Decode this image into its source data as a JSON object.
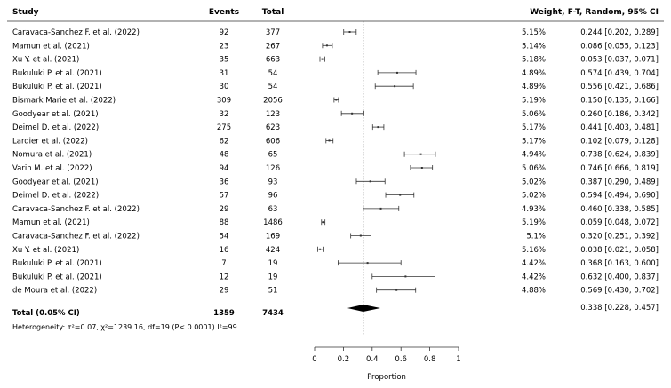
{
  "headers": {
    "study": "Study",
    "events": "Events",
    "total": "Total",
    "weight_ci": "Weight, F-T, Random, 95% CI"
  },
  "chart_data": {
    "type": "forest",
    "xlabel": "Proportion",
    "xlim": [
      0,
      1
    ],
    "xticks": [
      0,
      0.2,
      0.4,
      0.6,
      0.8,
      1
    ],
    "xtick_labels": [
      "0",
      "0.2",
      "0.4",
      "0.6",
      "0.8",
      "1"
    ],
    "reference_line": 0.338,
    "rows": [
      {
        "study": "Caravaca-Sanchez F. et al. (2022)",
        "events": "92",
        "total": "377",
        "weight": "5.15%",
        "est": 0.244,
        "lo": 0.202,
        "hi": 0.289,
        "ci": "0.244 [0.202, 0.289]"
      },
      {
        "study": "Mamun et al. (2021)",
        "events": "23",
        "total": "267",
        "weight": "5.14%",
        "est": 0.086,
        "lo": 0.055,
        "hi": 0.123,
        "ci": "0.086 [0.055, 0.123]"
      },
      {
        "study": "Xu Y. et al. (2021)",
        "events": "35",
        "total": "663",
        "weight": "5.18%",
        "est": 0.053,
        "lo": 0.037,
        "hi": 0.071,
        "ci": "0.053 [0.037, 0.071]"
      },
      {
        "study": "Bukuluki P. et al. (2021)",
        "events": "31",
        "total": "54",
        "weight": "4.89%",
        "est": 0.574,
        "lo": 0.439,
        "hi": 0.704,
        "ci": "0.574 [0.439, 0.704]"
      },
      {
        "study": "Bukuluki P. et al. (2021)",
        "events": "30",
        "total": "54",
        "weight": "4.89%",
        "est": 0.556,
        "lo": 0.421,
        "hi": 0.686,
        "ci": "0.556 [0.421, 0.686]"
      },
      {
        "study": "Bismark Marie et al. (2022)",
        "events": "309",
        "total": "2056",
        "weight": "5.19%",
        "est": 0.15,
        "lo": 0.135,
        "hi": 0.166,
        "ci": "0.150 [0.135, 0.166]"
      },
      {
        "study": "Goodyear et al. (2021)",
        "events": "32",
        "total": "123",
        "weight": "5.06%",
        "est": 0.26,
        "lo": 0.186,
        "hi": 0.342,
        "ci": "0.260 [0.186, 0.342]"
      },
      {
        "study": "Deimel D. et al. (2022)",
        "events": "275",
        "total": "623",
        "weight": "5.17%",
        "est": 0.441,
        "lo": 0.403,
        "hi": 0.481,
        "ci": "0.441 [0.403, 0.481]"
      },
      {
        "study": "Lardier et al. (2022)",
        "events": "62",
        "total": "606",
        "weight": "5.17%",
        "est": 0.102,
        "lo": 0.079,
        "hi": 0.128,
        "ci": "0.102 [0.079, 0.128]"
      },
      {
        "study": "Nomura et al. (2021)",
        "events": "48",
        "total": "65",
        "weight": "4.94%",
        "est": 0.738,
        "lo": 0.624,
        "hi": 0.839,
        "ci": "0.738 [0.624, 0.839]"
      },
      {
        "study": "Varin M. et al. (2022)",
        "events": "94",
        "total": "126",
        "weight": "5.06%",
        "est": 0.746,
        "lo": 0.666,
        "hi": 0.819,
        "ci": "0.746 [0.666, 0.819]"
      },
      {
        "study": "Goodyear et al. (2021)",
        "events": "36",
        "total": "93",
        "weight": "5.02%",
        "est": 0.387,
        "lo": 0.29,
        "hi": 0.489,
        "ci": "0.387 [0.290, 0.489]"
      },
      {
        "study": "Deimel D. et al. (2022)",
        "events": "57",
        "total": "96",
        "weight": "5.02%",
        "est": 0.594,
        "lo": 0.494,
        "hi": 0.69,
        "ci": "0.594 [0.494, 0.690]"
      },
      {
        "study": "Caravaca-Sanchez F. et al. (2022)",
        "events": "29",
        "total": "63",
        "weight": "4.93%",
        "est": 0.46,
        "lo": 0.338,
        "hi": 0.585,
        "ci": "0.460 [0.338, 0.585]"
      },
      {
        "study": "Mamun et al. (2021)",
        "events": "88",
        "total": "1486",
        "weight": "5.19%",
        "est": 0.059,
        "lo": 0.048,
        "hi": 0.072,
        "ci": "0.059 [0.048, 0.072]"
      },
      {
        "study": "Caravaca-Sanchez F. et al. (2022)",
        "events": "54",
        "total": "169",
        "weight": "5.1%",
        "est": 0.32,
        "lo": 0.251,
        "hi": 0.392,
        "ci": "0.320 [0.251, 0.392]"
      },
      {
        "study": "Xu Y. et al. (2021)",
        "events": "16",
        "total": "424",
        "weight": "5.16%",
        "est": 0.038,
        "lo": 0.021,
        "hi": 0.058,
        "ci": "0.038 [0.021, 0.058]"
      },
      {
        "study": "Bukuluki P. et al. (2021)",
        "events": "7",
        "total": "19",
        "weight": "4.42%",
        "est": 0.368,
        "lo": 0.163,
        "hi": 0.6,
        "ci": "0.368 [0.163, 0.600]"
      },
      {
        "study": "Bukuluki P. et al. (2021)",
        "events": "12",
        "total": "19",
        "weight": "4.42%",
        "est": 0.632,
        "lo": 0.4,
        "hi": 0.837,
        "ci": "0.632 [0.400, 0.837]"
      },
      {
        "study": "de Moura et al. (2022)",
        "events": "29",
        "total": "51",
        "weight": "4.88%",
        "est": 0.569,
        "lo": 0.43,
        "hi": 0.702,
        "ci": "0.569 [0.430, 0.702]"
      }
    ],
    "total": {
      "label": "Total (0.05% CI)",
      "events": "1359",
      "total": "7434",
      "est": 0.338,
      "lo": 0.228,
      "hi": 0.457,
      "ci": "0.338 [0.228, 0.457]"
    },
    "heterogeneity": "Heterogeneity: τ²=0.07, χ²=1239.16, df=19 (P< 0.0001) I²=99"
  }
}
